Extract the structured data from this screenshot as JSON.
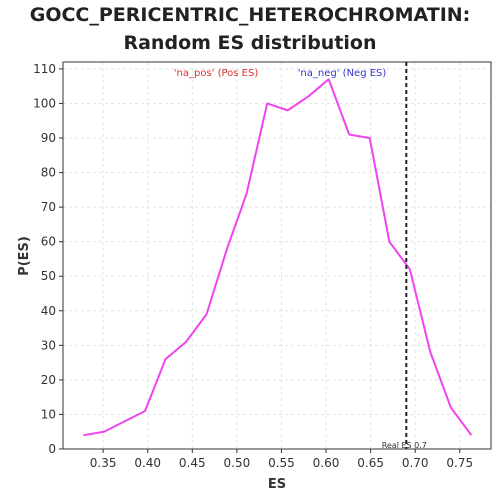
{
  "chart_data": {
    "type": "line",
    "title_lines": [
      "GOCC_PERICENTRIC_HETEROCHROMATIN:",
      "Random ES distribution"
    ],
    "xlabel": "ES",
    "ylabel": "P(ES)",
    "xlim": [
      0.305,
      0.785
    ],
    "ylim": [
      0,
      112
    ],
    "xticks": [
      0.35,
      0.4,
      0.45,
      0.5,
      0.55,
      0.6,
      0.65,
      0.7,
      0.75
    ],
    "xtick_labels": [
      "0.35",
      "0.40",
      "0.45",
      "0.50",
      "0.55",
      "0.60",
      "0.65",
      "0.70",
      "0.75"
    ],
    "yticks": [
      0,
      10,
      20,
      30,
      40,
      50,
      60,
      70,
      80,
      90,
      100,
      110
    ],
    "ytick_labels": [
      "0",
      "10",
      "20",
      "30",
      "40",
      "50",
      "60",
      "70",
      "80",
      "90",
      "100",
      "110"
    ],
    "grid": true,
    "series": [
      {
        "color": "#ee44ee",
        "x": [
          0.328,
          0.351,
          0.374,
          0.397,
          0.42,
          0.443,
          0.466,
          0.489,
          0.511,
          0.534,
          0.557,
          0.58,
          0.603,
          0.626,
          0.649,
          0.671,
          0.694,
          0.717,
          0.74,
          0.763
        ],
        "y": [
          4,
          5,
          8,
          11,
          26,
          31,
          39,
          58,
          74,
          100,
          98,
          102,
          107,
          91,
          90,
          60,
          52,
          28,
          12,
          4
        ]
      }
    ],
    "annotations": {
      "pos_label": "'na_pos' (Pos ES)",
      "pos_color": "#e03030",
      "neg_label": "'na_neg' (Neg ES)",
      "neg_color": "#3333cc",
      "real_es_x": 0.69,
      "real_es_label": "Real ES 0.7"
    }
  }
}
